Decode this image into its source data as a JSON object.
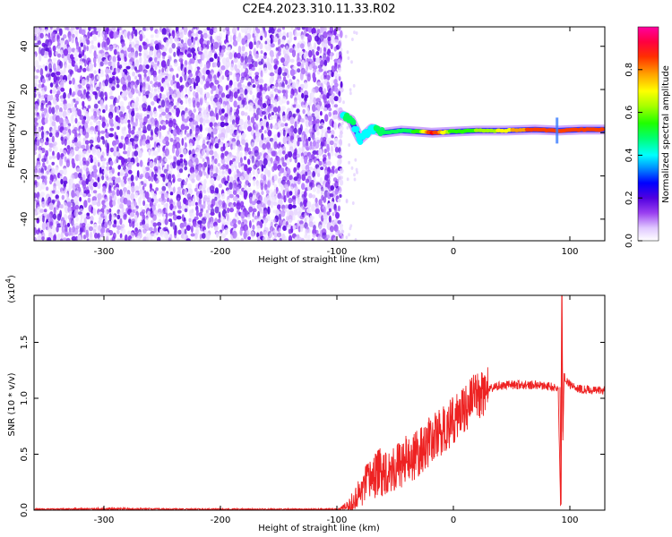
{
  "figure_title": "C2E4.2023.310.11.33.R02",
  "chart_data": [
    {
      "type": "heatmap",
      "panel": "spectrogram",
      "xlabel": "Height of straight line (km)",
      "ylabel": "Frequency (Hz)",
      "xlim": [
        -360,
        130
      ],
      "ylim": [
        -50,
        49
      ],
      "x_ticks": [
        -300,
        -200,
        -100,
        0,
        100
      ],
      "y_ticks": [
        -40,
        -20,
        0,
        20,
        40
      ],
      "colorbar": {
        "label": "Normalized spectral amplitude",
        "range": [
          0,
          1
        ],
        "ticks": [
          0.0,
          0.2,
          0.4,
          0.6,
          0.8
        ],
        "colormap": [
          "#ffffff",
          "#e6ccff",
          "#8a2be2",
          "#5000e0",
          "#0000ff",
          "#00a0ff",
          "#00ffff",
          "#00ff60",
          "#20ff00",
          "#a0ff00",
          "#ffff00",
          "#ffa000",
          "#ff4000",
          "#ff0000",
          "#ff0060",
          "#ff00a0"
        ]
      },
      "features": [
        {
          "name": "broadband noise",
          "x_range": [
            -360,
            -97
          ],
          "freq_range": [
            -50,
            49
          ],
          "amplitude": 0.1
        },
        {
          "name": "carrier trace",
          "points": [
            {
              "x": -95,
              "freq": 8,
              "amp": 0.45
            },
            {
              "x": -88,
              "freq": 6,
              "amp": 0.5
            },
            {
              "x": -80,
              "freq": -3,
              "amp": 0.4
            },
            {
              "x": -70,
              "freq": 2,
              "amp": 0.45
            },
            {
              "x": -60,
              "freq": 0,
              "amp": 0.5
            },
            {
              "x": -45,
              "freq": 1,
              "amp": 0.5
            },
            {
              "x": -30,
              "freq": 0.5,
              "amp": 0.55
            },
            {
              "x": -18,
              "freq": 0,
              "amp": 0.9
            },
            {
              "x": 0,
              "freq": 0.5,
              "amp": 0.55
            },
            {
              "x": 20,
              "freq": 1,
              "amp": 0.6
            },
            {
              "x": 45,
              "freq": 1,
              "amp": 0.7
            },
            {
              "x": 70,
              "freq": 1.5,
              "amp": 0.85
            },
            {
              "x": 90,
              "freq": 1,
              "amp": 0.8
            },
            {
              "x": 110,
              "freq": 1.5,
              "amp": 0.85
            },
            {
              "x": 130,
              "freq": 1.5,
              "amp": 0.8
            }
          ]
        }
      ]
    },
    {
      "type": "line",
      "panel": "snr",
      "xlabel": "Height of straight line (km)",
      "ylabel": "SNR (10 * v/v)",
      "y_multiplier": "(x10^4)",
      "xlim": [
        -360,
        130
      ],
      "ylim": [
        0,
        1.92
      ],
      "x_ticks": [
        -300,
        -200,
        -100,
        0,
        100
      ],
      "y_ticks": [
        0.0,
        0.5,
        1.0,
        1.5
      ],
      "series": [
        {
          "color": "#ee2222",
          "x": [
            -360,
            -300,
            -200,
            -110,
            -100,
            -90,
            -80,
            -70,
            -60,
            -50,
            -40,
            -30,
            -20,
            -10,
            0,
            10,
            20,
            30,
            40,
            50,
            60,
            70,
            80,
            85,
            90,
            92,
            93,
            94,
            95,
            100,
            110,
            120,
            130
          ],
          "y": [
            0.0,
            0.01,
            0.0,
            0.0,
            0.0,
            0.02,
            0.15,
            0.3,
            0.35,
            0.38,
            0.45,
            0.5,
            0.62,
            0.7,
            0.8,
            0.92,
            1.02,
            1.08,
            1.11,
            1.12,
            1.12,
            1.12,
            1.11,
            1.1,
            1.08,
            0.05,
            1.92,
            0.6,
            1.2,
            1.12,
            1.08,
            1.07,
            1.07
          ]
        }
      ]
    }
  ]
}
